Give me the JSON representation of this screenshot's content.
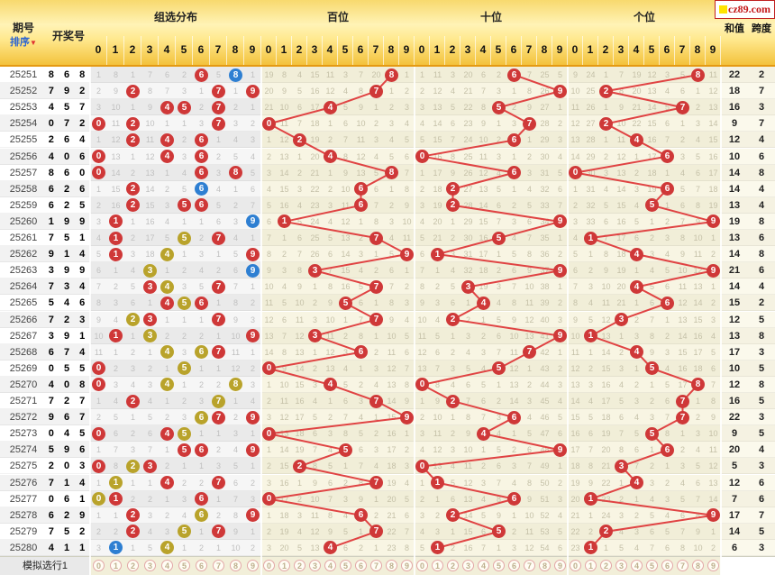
{
  "header": {
    "period_label": "期号",
    "sort_label": "排序",
    "draw_label": "开奖号",
    "group_label": "组选分布",
    "hundreds_label": "百位",
    "tens_label": "十位",
    "units_label": "个位",
    "sum_label": "和值",
    "span_label": "跨度",
    "logo_text": "cz89.com",
    "digit_headers": [
      "0",
      "1",
      "2",
      "3",
      "4",
      "5",
      "6",
      "7",
      "8",
      "9"
    ]
  },
  "chart_data": {
    "type": "table",
    "sections": [
      "组选分布",
      "百位",
      "十位",
      "个位"
    ],
    "rows": [
      {
        "period": "25251",
        "draw": "868",
        "sum": 22,
        "span": 2,
        "group_marks": {
          "6": "red",
          "8": "blue"
        }
      },
      {
        "period": "25252",
        "draw": "792",
        "sum": 18,
        "span": 7,
        "group_marks": {
          "7": "red",
          "9": "red",
          "2": "red"
        }
      },
      {
        "period": "25253",
        "draw": "457",
        "sum": 16,
        "span": 3,
        "group_marks": {
          "4": "red",
          "5": "red",
          "7": "red"
        }
      },
      {
        "period": "25254",
        "draw": "072",
        "sum": 9,
        "span": 7,
        "group_marks": {
          "0": "red",
          "7": "red",
          "2": "red"
        }
      },
      {
        "period": "25255",
        "draw": "264",
        "sum": 12,
        "span": 4,
        "group_marks": {
          "2": "red",
          "6": "red",
          "4": "red"
        }
      },
      {
        "period": "25256",
        "draw": "406",
        "sum": 10,
        "span": 6,
        "group_marks": {
          "4": "red",
          "0": "red",
          "6": "red"
        }
      },
      {
        "period": "25257",
        "draw": "860",
        "sum": 14,
        "span": 8,
        "group_marks": {
          "8": "red",
          "6": "red",
          "0": "red"
        }
      },
      {
        "period": "25258",
        "draw": "626",
        "sum": 14,
        "span": 4,
        "group_marks": {
          "6": "blue",
          "2": "red"
        }
      },
      {
        "period": "25259",
        "draw": "625",
        "sum": 13,
        "span": 4,
        "group_marks": {
          "6": "red",
          "2": "red",
          "5": "red"
        }
      },
      {
        "period": "25260",
        "draw": "199",
        "sum": 19,
        "span": 8,
        "group_marks": {
          "1": "red",
          "9": "blue"
        }
      },
      {
        "period": "25261",
        "draw": "751",
        "sum": 13,
        "span": 6,
        "group_marks": {
          "7": "red",
          "5": "olive",
          "1": "red"
        }
      },
      {
        "period": "25262",
        "draw": "914",
        "sum": 14,
        "span": 8,
        "group_marks": {
          "9": "red",
          "1": "red",
          "4": "olive"
        }
      },
      {
        "period": "25263",
        "draw": "399",
        "sum": 21,
        "span": 6,
        "group_marks": {
          "3": "olive",
          "9": "blue"
        }
      },
      {
        "period": "25264",
        "draw": "734",
        "sum": 14,
        "span": 4,
        "group_marks": {
          "7": "red",
          "3": "red",
          "4": "olive"
        }
      },
      {
        "period": "25265",
        "draw": "546",
        "sum": 15,
        "span": 2,
        "group_marks": {
          "5": "olive",
          "4": "red",
          "6": "red"
        }
      },
      {
        "period": "25266",
        "draw": "723",
        "sum": 12,
        "span": 5,
        "group_marks": {
          "7": "red",
          "2": "olive",
          "3": "red"
        }
      },
      {
        "period": "25267",
        "draw": "391",
        "sum": 13,
        "span": 8,
        "group_marks": {
          "3": "olive",
          "9": "red",
          "1": "red"
        }
      },
      {
        "period": "25268",
        "draw": "674",
        "sum": 17,
        "span": 3,
        "group_marks": {
          "6": "olive",
          "7": "red",
          "4": "olive"
        }
      },
      {
        "period": "25269",
        "draw": "055",
        "sum": 10,
        "span": 5,
        "group_marks": {
          "0": "red",
          "5": "olive"
        }
      },
      {
        "period": "25270",
        "draw": "408",
        "sum": 12,
        "span": 8,
        "group_marks": {
          "4": "olive",
          "0": "red",
          "8": "olive"
        }
      },
      {
        "period": "25271",
        "draw": "727",
        "sum": 16,
        "span": 5,
        "group_marks": {
          "7": "olive",
          "2": "red"
        }
      },
      {
        "period": "25272",
        "draw": "967",
        "sum": 22,
        "span": 3,
        "group_marks": {
          "9": "red",
          "6": "olive",
          "7": "red"
        }
      },
      {
        "period": "25273",
        "draw": "045",
        "sum": 9,
        "span": 5,
        "group_marks": {
          "0": "red",
          "4": "red",
          "5": "olive"
        }
      },
      {
        "period": "25274",
        "draw": "596",
        "sum": 20,
        "span": 4,
        "group_marks": {
          "5": "red",
          "9": "red",
          "6": "red"
        }
      },
      {
        "period": "25275",
        "draw": "203",
        "sum": 5,
        "span": 3,
        "group_marks": {
          "2": "olive",
          "0": "red",
          "3": "red"
        }
      },
      {
        "period": "25276",
        "draw": "714",
        "sum": 12,
        "span": 6,
        "group_marks": {
          "7": "red",
          "1": "olive",
          "4": "red"
        }
      },
      {
        "period": "25277",
        "draw": "061",
        "sum": 7,
        "span": 6,
        "group_marks": {
          "0": "olive",
          "6": "red",
          "1": "red"
        }
      },
      {
        "period": "25278",
        "draw": "629",
        "sum": 17,
        "span": 7,
        "group_marks": {
          "6": "olive",
          "2": "red",
          "9": "red"
        }
      },
      {
        "period": "25279",
        "draw": "752",
        "sum": 14,
        "span": 5,
        "group_marks": {
          "7": "red",
          "5": "olive",
          "2": "red"
        }
      },
      {
        "period": "25280",
        "draw": "411",
        "sum": 6,
        "span": 3,
        "group_marks": {
          "4": "olive",
          "1": "blue"
        }
      }
    ],
    "miss_baseline_row1": {
      "group": [
        1,
        8,
        1,
        7,
        6,
        2,
        0,
        5,
        0,
        1
      ],
      "hundreds": [
        19,
        8,
        4,
        15,
        11,
        3,
        7,
        20,
        0,
        1
      ],
      "tens": [
        1,
        11,
        3,
        20,
        6,
        2,
        0,
        7,
        25,
        5
      ],
      "units": [
        9,
        24,
        1,
        7,
        19,
        12,
        3,
        5,
        0,
        11
      ]
    }
  },
  "footer": {
    "label": "模拟选行1",
    "digits": [
      "0",
      "1",
      "2",
      "3",
      "4",
      "5",
      "6",
      "7",
      "8",
      "9"
    ]
  },
  "colors": {
    "red": "#cf3838",
    "blue": "#2e7fd2",
    "olive": "#b9a32b",
    "line": "#e04343",
    "header_gold": "#f3c23c",
    "cream": "#f3f0da"
  }
}
